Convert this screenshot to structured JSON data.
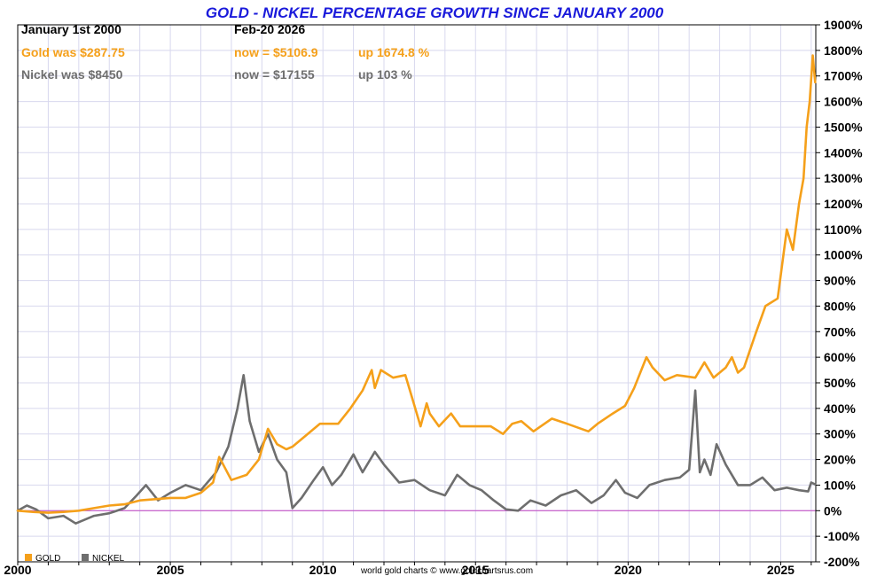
{
  "colors": {
    "gold": "#f5a01a",
    "nickel": "#6e6e6e",
    "title": "#1a1adb",
    "grid": "#d8d8ee",
    "zero_line": "#c040c0"
  },
  "header": {
    "start_label": "January 1st 2000",
    "end_label": "Feb-20  2026",
    "gold_was": "Gold was $287.75",
    "gold_now": "now = $5106.9",
    "gold_up": "up 1674.8 %",
    "nickel_was": "Nickel was $8450",
    "nickel_now": "now = $17155",
    "nickel_up": "up 103 %"
  },
  "legend": {
    "gold": "GOLD",
    "nickel": "NICKEL"
  },
  "credit": "world gold charts © www.goldchartsrus.com",
  "chart_data": {
    "type": "line",
    "title": "GOLD - NICKEL PERCENTAGE GROWTH SINCE JANUARY 2000",
    "xlabel": "",
    "ylabel": "",
    "xlim": [
      2000,
      2026.15
    ],
    "ylim": [
      -200,
      1900
    ],
    "x_ticks": [
      "2000",
      "2005",
      "2010",
      "2015",
      "2020",
      "2025"
    ],
    "y_ticks": [
      "-200%",
      "-100%",
      "0%",
      "100%",
      "200%",
      "300%",
      "400%",
      "500%",
      "600%",
      "700%",
      "800%",
      "900%",
      "1000%",
      "1100%",
      "1200%",
      "1300%",
      "1400%",
      "1500%",
      "1600%",
      "1700%",
      "1800%",
      "1900%"
    ],
    "grid": true,
    "legend_position": "bottom-left",
    "series": [
      {
        "name": "GOLD",
        "x": [
          2000.0,
          2000.5,
          2001.0,
          2001.5,
          2002.0,
          2002.5,
          2003.0,
          2003.5,
          2004.0,
          2004.5,
          2005.0,
          2005.5,
          2006.0,
          2006.4,
          2006.6,
          2007.0,
          2007.5,
          2007.9,
          2008.2,
          2008.5,
          2008.8,
          2009.0,
          2009.5,
          2009.9,
          2010.5,
          2010.9,
          2011.3,
          2011.6,
          2011.7,
          2011.9,
          2012.3,
          2012.7,
          2012.9,
          2013.2,
          2013.4,
          2013.5,
          2013.8,
          2014.2,
          2014.5,
          2015.0,
          2015.5,
          2015.9,
          2016.2,
          2016.5,
          2016.9,
          2017.5,
          2018.0,
          2018.7,
          2019.0,
          2019.5,
          2019.9,
          2020.2,
          2020.6,
          2020.8,
          2021.2,
          2021.6,
          2022.2,
          2022.5,
          2022.8,
          2023.2,
          2023.4,
          2023.6,
          2023.8,
          2024.2,
          2024.5,
          2024.9,
          2025.2,
          2025.4,
          2025.6,
          2025.75,
          2025.85,
          2025.95,
          2026.05,
          2026.13
        ],
        "values": [
          0,
          -5,
          -8,
          -5,
          0,
          10,
          20,
          25,
          40,
          45,
          50,
          50,
          70,
          110,
          210,
          120,
          140,
          200,
          320,
          260,
          240,
          250,
          300,
          340,
          340,
          400,
          470,
          550,
          480,
          550,
          520,
          530,
          450,
          330,
          420,
          380,
          330,
          380,
          330,
          330,
          330,
          300,
          340,
          350,
          310,
          360,
          340,
          310,
          340,
          380,
          410,
          480,
          600,
          560,
          510,
          530,
          520,
          580,
          520,
          560,
          600,
          540,
          560,
          700,
          800,
          830,
          1100,
          1020,
          1200,
          1300,
          1500,
          1600,
          1780,
          1675
        ]
      },
      {
        "name": "NICKEL",
        "x": [
          2000.0,
          2000.3,
          2000.6,
          2001.0,
          2001.5,
          2001.9,
          2002.5,
          2003.0,
          2003.5,
          2003.9,
          2004.2,
          2004.6,
          2005.0,
          2005.5,
          2006.0,
          2006.5,
          2006.9,
          2007.2,
          2007.4,
          2007.6,
          2007.9,
          2008.2,
          2008.5,
          2008.8,
          2009.0,
          2009.3,
          2009.7,
          2010.0,
          2010.3,
          2010.6,
          2011.0,
          2011.3,
          2011.7,
          2012.0,
          2012.5,
          2013.0,
          2013.5,
          2014.0,
          2014.4,
          2014.8,
          2015.2,
          2015.6,
          2016.0,
          2016.4,
          2016.8,
          2017.3,
          2017.8,
          2018.3,
          2018.8,
          2019.2,
          2019.6,
          2019.9,
          2020.3,
          2020.7,
          2021.2,
          2021.7,
          2022.0,
          2022.2,
          2022.35,
          2022.5,
          2022.7,
          2022.9,
          2023.2,
          2023.6,
          2024.0,
          2024.4,
          2024.8,
          2025.2,
          2025.6,
          2025.9,
          2026.0,
          2026.13
        ],
        "values": [
          0,
          20,
          5,
          -30,
          -20,
          -50,
          -20,
          -10,
          10,
          60,
          100,
          40,
          70,
          100,
          80,
          150,
          250,
          400,
          530,
          350,
          230,
          300,
          200,
          150,
          10,
          50,
          120,
          170,
          100,
          140,
          220,
          150,
          230,
          180,
          110,
          120,
          80,
          60,
          140,
          100,
          80,
          40,
          5,
          0,
          40,
          20,
          60,
          80,
          30,
          60,
          120,
          70,
          50,
          100,
          120,
          130,
          160,
          470,
          150,
          200,
          140,
          260,
          180,
          100,
          100,
          130,
          80,
          90,
          80,
          75,
          110,
          103
        ]
      }
    ]
  }
}
